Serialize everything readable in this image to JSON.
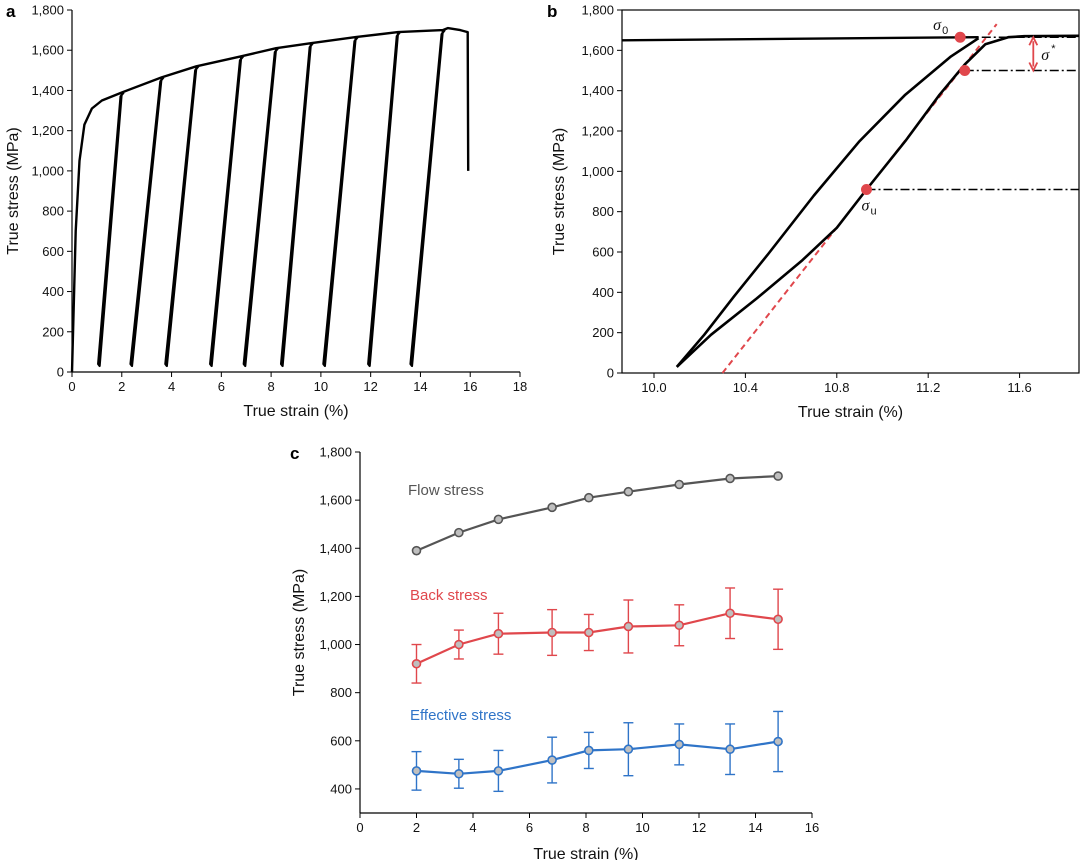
{
  "chart_data": [
    {
      "panel": "a",
      "type": "line",
      "xlabel": "True strain (%)",
      "ylabel": "True stress (MPa)",
      "xlim": [
        0,
        18
      ],
      "ylim": [
        0,
        1800
      ],
      "xticks": [
        0,
        2,
        4,
        6,
        8,
        10,
        12,
        14,
        16,
        18
      ],
      "yticks": [
        0,
        200,
        400,
        600,
        800,
        1000,
        1200,
        1400,
        1600,
        1800
      ],
      "ytick_labels": [
        "0",
        "200",
        "400",
        "600",
        "800",
        "1,000",
        "1,200",
        "1,400",
        "1,600",
        "1,800"
      ],
      "loading_curve": {
        "x": [
          0,
          0.15,
          0.3,
          0.5,
          0.8,
          1.2,
          2.0,
          3.6,
          5.0,
          6.8,
          8.2,
          9.6,
          11.4,
          13.1,
          14.9,
          15.1,
          15.6,
          15.9,
          15.92
        ],
        "y": [
          0,
          700,
          1050,
          1230,
          1310,
          1350,
          1390,
          1465,
          1520,
          1570,
          1610,
          1635,
          1665,
          1690,
          1700,
          1710,
          1700,
          1690,
          1000
        ]
      },
      "unload_reload_cycles": [
        {
          "peak_strain": 2.0,
          "peak_stress": 1390,
          "min_strain": 1.05
        },
        {
          "peak_strain": 3.6,
          "peak_stress": 1465,
          "min_strain": 2.35
        },
        {
          "peak_strain": 5.0,
          "peak_stress": 1520,
          "min_strain": 3.75
        },
        {
          "peak_strain": 6.8,
          "peak_stress": 1570,
          "min_strain": 5.55
        },
        {
          "peak_strain": 8.2,
          "peak_stress": 1610,
          "min_strain": 6.9
        },
        {
          "peak_strain": 9.6,
          "peak_stress": 1635,
          "min_strain": 8.4
        },
        {
          "peak_strain": 11.4,
          "peak_stress": 1665,
          "min_strain": 10.1
        },
        {
          "peak_strain": 13.1,
          "peak_stress": 1690,
          "min_strain": 11.9
        },
        {
          "peak_strain": 14.9,
          "peak_stress": 1700,
          "min_strain": 13.6
        }
      ]
    },
    {
      "panel": "b",
      "type": "line",
      "xlabel": "True strain (%)",
      "ylabel": "True stress (MPa)",
      "xlim": [
        9.86,
        11.86
      ],
      "ylim": [
        0,
        1800
      ],
      "xticks": [
        10.0,
        10.4,
        10.8,
        11.2,
        11.6
      ],
      "xtick_labels": [
        "10.0",
        "10.4",
        "10.8",
        "11.2",
        "11.6"
      ],
      "yticks": [
        0,
        200,
        400,
        600,
        800,
        1000,
        1200,
        1400,
        1600,
        1800
      ],
      "ytick_labels": [
        "0",
        "200",
        "400",
        "600",
        "800",
        "1,000",
        "1,200",
        "1,400",
        "1,600",
        "1,800"
      ],
      "flow_line": {
        "x": [
          9.86,
          11.42
        ],
        "y": [
          1650,
          1665
        ]
      },
      "unloading_curve": {
        "x": [
          11.42,
          11.3,
          11.1,
          10.9,
          10.7,
          10.5,
          10.35,
          10.22,
          10.1
        ],
        "y": [
          1660,
          1570,
          1380,
          1150,
          880,
          590,
          380,
          190,
          30
        ]
      },
      "reloading_curve": {
        "x": [
          10.1,
          10.25,
          10.45,
          10.65,
          10.8,
          10.93,
          11.1,
          11.25,
          11.36,
          11.45,
          11.55,
          11.62,
          11.86
        ],
        "y": [
          30,
          190,
          370,
          560,
          720,
          910,
          1150,
          1380,
          1530,
          1630,
          1665,
          1670,
          1672
        ]
      },
      "elastic_fit": {
        "x": [
          10.3,
          11.5
        ],
        "y": [
          0,
          1730
        ]
      },
      "dash_dot_lines": [
        {
          "x": [
            11.36,
            11.86
          ],
          "y": 1665
        },
        {
          "x": [
            11.36,
            11.86
          ],
          "y": 1500
        },
        {
          "x": [
            10.93,
            11.86
          ],
          "y": 910
        }
      ],
      "markers": [
        {
          "label": "σ",
          "sub": "0",
          "x": 11.34,
          "y": 1665
        },
        {
          "label": "",
          "sub": "",
          "x": 11.36,
          "y": 1500
        },
        {
          "label": "σ",
          "sub": "u",
          "x": 10.93,
          "y": 910
        }
      ],
      "sigma_star": {
        "label": "σ",
        "sup": "*",
        "x": 11.66,
        "y_top": 1665,
        "y_bottom": 1500
      },
      "colors": {
        "curve": "#000000",
        "red": "#e0474c"
      }
    },
    {
      "panel": "c",
      "type": "line",
      "xlabel": "True strain (%)",
      "ylabel": "True stress (MPa)",
      "xlim": [
        0,
        16
      ],
      "ylim": [
        300,
        1800
      ],
      "xticks": [
        0,
        2,
        4,
        6,
        8,
        10,
        12,
        14,
        16
      ],
      "yticks": [
        400,
        600,
        800,
        1000,
        1200,
        1400,
        1600,
        1800
      ],
      "ytick_labels": [
        "400",
        "600",
        "800",
        "1,000",
        "1,200",
        "1,400",
        "1,600",
        "1,800"
      ],
      "x": [
        2.0,
        3.5,
        4.9,
        6.8,
        8.1,
        9.5,
        11.3,
        13.1,
        14.8
      ],
      "series": [
        {
          "name": "Flow stress",
          "color": "#555555",
          "values": [
            1390,
            1465,
            1520,
            1570,
            1610,
            1635,
            1665,
            1690,
            1700
          ],
          "errors": [
            0,
            0,
            0,
            0,
            0,
            0,
            0,
            0,
            0
          ]
        },
        {
          "name": "Back stress",
          "color": "#e0474c",
          "values": [
            920,
            1000,
            1045,
            1050,
            1050,
            1075,
            1080,
            1130,
            1105
          ],
          "errors": [
            80,
            60,
            85,
            95,
            75,
            110,
            85,
            105,
            125
          ]
        },
        {
          "name": "Effective stress",
          "color": "#2f74c8",
          "values": [
            475,
            463,
            475,
            520,
            560,
            565,
            585,
            565,
            597
          ],
          "errors": [
            80,
            60,
            85,
            95,
            75,
            110,
            85,
            105,
            125
          ]
        }
      ]
    }
  ]
}
